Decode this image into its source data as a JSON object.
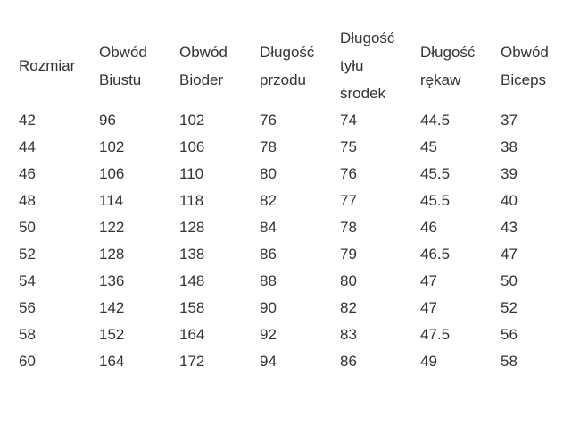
{
  "headers": [
    [
      "Rozmiar"
    ],
    [
      "Obwód",
      "Biustu"
    ],
    [
      "Obwód",
      "Bioder"
    ],
    [
      "Długość",
      "przodu"
    ],
    [
      "Długość",
      "tyłu",
      "środek"
    ],
    [
      "Długość",
      "rękaw"
    ],
    [
      "Obwód",
      "Biceps"
    ]
  ],
  "rows": [
    [
      "42",
      "96",
      "102",
      "76",
      "74",
      "44.5",
      "37"
    ],
    [
      "44",
      "102",
      "106",
      "78",
      "75",
      "45",
      "38"
    ],
    [
      "46",
      "106",
      "110",
      "80",
      "76",
      "45.5",
      "39"
    ],
    [
      "48",
      "114",
      "118",
      "82",
      "77",
      "45.5",
      "40"
    ],
    [
      "50",
      "122",
      "128",
      "84",
      "78",
      "46",
      "43"
    ],
    [
      "52",
      "128",
      "138",
      "86",
      "79",
      "46.5",
      "47"
    ],
    [
      "54",
      "136",
      "148",
      "88",
      "80",
      "47",
      "50"
    ],
    [
      "56",
      "142",
      "158",
      "90",
      "82",
      "47",
      "52"
    ],
    [
      "58",
      "152",
      "164",
      "92",
      "83",
      "47.5",
      "56"
    ],
    [
      "60",
      "164",
      "172",
      "94",
      "86",
      "49",
      "58"
    ]
  ]
}
